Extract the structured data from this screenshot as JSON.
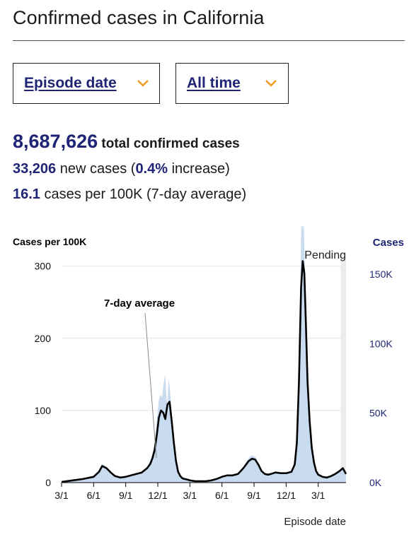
{
  "page": {
    "title": "Confirmed cases in California"
  },
  "filters": {
    "date_type": {
      "label": "Episode date"
    },
    "range": {
      "label": "All time"
    }
  },
  "stats": {
    "total": "8,687,626",
    "total_label": "total confirmed cases",
    "new_cases": "33,206",
    "new_label_pre": " new cases (",
    "pct": "0.4%",
    "new_label_post": " increase)",
    "rate": "16.1",
    "rate_label": " cases per 100K (7-day average)"
  },
  "colors": {
    "accent": "#1f2574",
    "chevron": "#f29b22",
    "bars": "#c9dbef",
    "line": "#000000"
  },
  "chart_data": {
    "type": "area",
    "ylabel_left": "Cases per 100K",
    "ylabel_right": "Cases",
    "xlabel": "Episode date",
    "annotation_avg": "7-day average",
    "annotation_pending": "Pending",
    "y_left_ticks": [
      "0",
      "100",
      "200",
      "300"
    ],
    "y_left_tick_values": [
      0,
      100,
      200,
      300
    ],
    "y_right_ticks": [
      "0K",
      "50K",
      "100K",
      "150K"
    ],
    "y_right_tick_values": [
      0,
      50000,
      100000,
      150000
    ],
    "ylim_left": [
      0,
      330
    ],
    "x_ticks": [
      "3/1",
      "6/1",
      "9/1",
      "12/1",
      "3/1",
      "6/1",
      "9/1",
      "12/1",
      "3/1"
    ],
    "x_tick_months": [
      0,
      3,
      6,
      9,
      12,
      15,
      18,
      21,
      24
    ],
    "xlim_months": [
      0,
      26.6
    ],
    "pending_from_month": 26.1,
    "series": [
      {
        "name": "7-day average",
        "x_months": [
          0,
          1,
          2,
          3,
          3.5,
          3.8,
          4.2,
          4.6,
          5,
          5.5,
          6,
          6.5,
          7,
          7.5,
          8,
          8.3,
          8.5,
          8.7,
          8.9,
          9.1,
          9.3,
          9.5,
          9.7,
          9.9,
          10.1,
          10.3,
          10.5,
          10.7,
          10.9,
          11.1,
          11.3,
          11.5,
          11.8,
          12,
          12.5,
          13,
          13.5,
          14,
          14.5,
          15,
          15.5,
          16,
          16.5,
          17,
          17.5,
          17.8,
          18.1,
          18.4,
          18.7,
          19,
          19.3,
          19.6,
          20,
          20.5,
          21,
          21.5,
          21.8,
          22,
          22.2,
          22.4,
          22.55,
          22.7,
          22.85,
          23,
          23.2,
          23.4,
          23.6,
          23.8,
          24,
          24.4,
          24.8,
          25.2,
          25.6,
          26,
          26.3,
          26.6
        ],
        "values": [
          1,
          3,
          5,
          8,
          15,
          23,
          20,
          14,
          9,
          7,
          8,
          10,
          12,
          14,
          20,
          26,
          34,
          45,
          65,
          90,
          100,
          97,
          88,
          108,
          112,
          85,
          55,
          30,
          15,
          9,
          6,
          5,
          4,
          3,
          2,
          2,
          2,
          3,
          5,
          8,
          10,
          10,
          12,
          20,
          30,
          33,
          32,
          25,
          16,
          12,
          11,
          12,
          14,
          13,
          13,
          15,
          25,
          55,
          140,
          270,
          307,
          290,
          220,
          140,
          85,
          48,
          28,
          16,
          11,
          8,
          7,
          9,
          12,
          16,
          20,
          12
        ]
      },
      {
        "name": "Cases",
        "x_months": [
          0,
          1,
          2,
          3,
          3.5,
          3.8,
          4.2,
          4.6,
          5,
          5.5,
          6,
          6.5,
          7,
          7.5,
          8,
          8.3,
          8.5,
          8.7,
          8.9,
          9.1,
          9.25,
          9.4,
          9.55,
          9.7,
          9.8,
          9.9,
          10,
          10.1,
          10.3,
          10.5,
          10.7,
          10.9,
          11.1,
          11.3,
          11.5,
          11.8,
          12,
          12.5,
          13,
          13.5,
          14,
          14.5,
          15,
          15.5,
          16,
          16.5,
          17,
          17.5,
          17.8,
          18.1,
          18.4,
          18.7,
          19,
          19.3,
          19.6,
          20,
          20.5,
          21,
          21.5,
          21.8,
          22,
          22.2,
          22.35,
          22.45,
          22.55,
          22.65,
          22.75,
          22.85,
          23,
          23.2,
          23.4,
          23.6,
          23.8,
          24,
          24.4,
          24.8,
          25.2,
          25.6,
          26,
          26.3,
          26.6
        ],
        "values_per_100k": [
          1,
          3,
          5,
          8,
          16,
          26,
          22,
          15,
          10,
          8,
          9,
          11,
          13,
          15,
          22,
          30,
          40,
          55,
          85,
          115,
          122,
          118,
          138,
          150,
          120,
          108,
          142,
          135,
          95,
          60,
          34,
          17,
          10,
          7,
          6,
          5,
          3,
          2,
          2,
          2,
          3,
          5,
          9,
          11,
          11,
          13,
          22,
          34,
          38,
          36,
          27,
          18,
          13,
          12,
          13,
          15,
          14,
          14,
          16,
          30,
          70,
          180,
          300,
          380,
          350,
          360,
          300,
          250,
          160,
          95,
          55,
          32,
          18,
          12,
          9,
          8,
          10,
          13,
          18,
          21,
          14
        ]
      }
    ]
  }
}
